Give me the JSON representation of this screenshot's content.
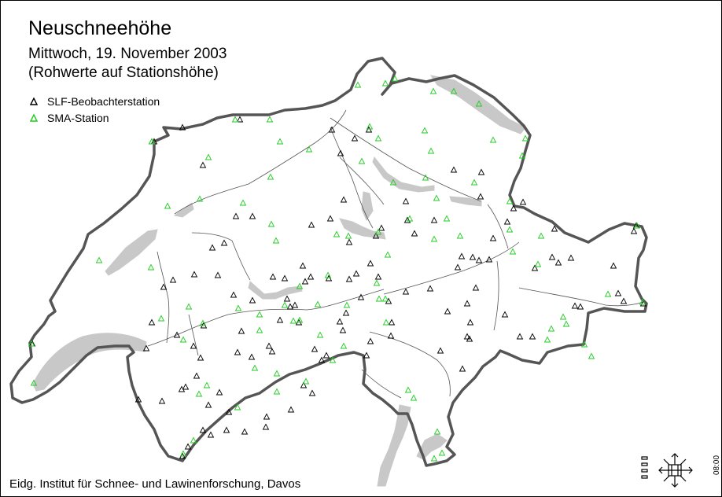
{
  "map": {
    "title": "Neuschneehöhe",
    "date": "Mittwoch, 19. November 2003",
    "note": "(Rohwerte auf Stationshöhe)"
  },
  "legend": [
    {
      "label": "SLF-Beobachterstation",
      "color": "#000000",
      "icon": "triangle-outline-icon"
    },
    {
      "label": "SMA-Station",
      "color": "#22cc22",
      "icon": "triangle-outline-icon"
    }
  ],
  "colors": {
    "border": "#555555",
    "lake": "#c8c8c8",
    "river": "#555555",
    "slf": "#000000",
    "sma": "#22cc22"
  },
  "footer": {
    "institute": "Eidg. Institut für Schnee- und Lawinenforschung, Davos",
    "time": "08:00",
    "logo_icon": "slf-snowflake-logo-icon"
  }
}
